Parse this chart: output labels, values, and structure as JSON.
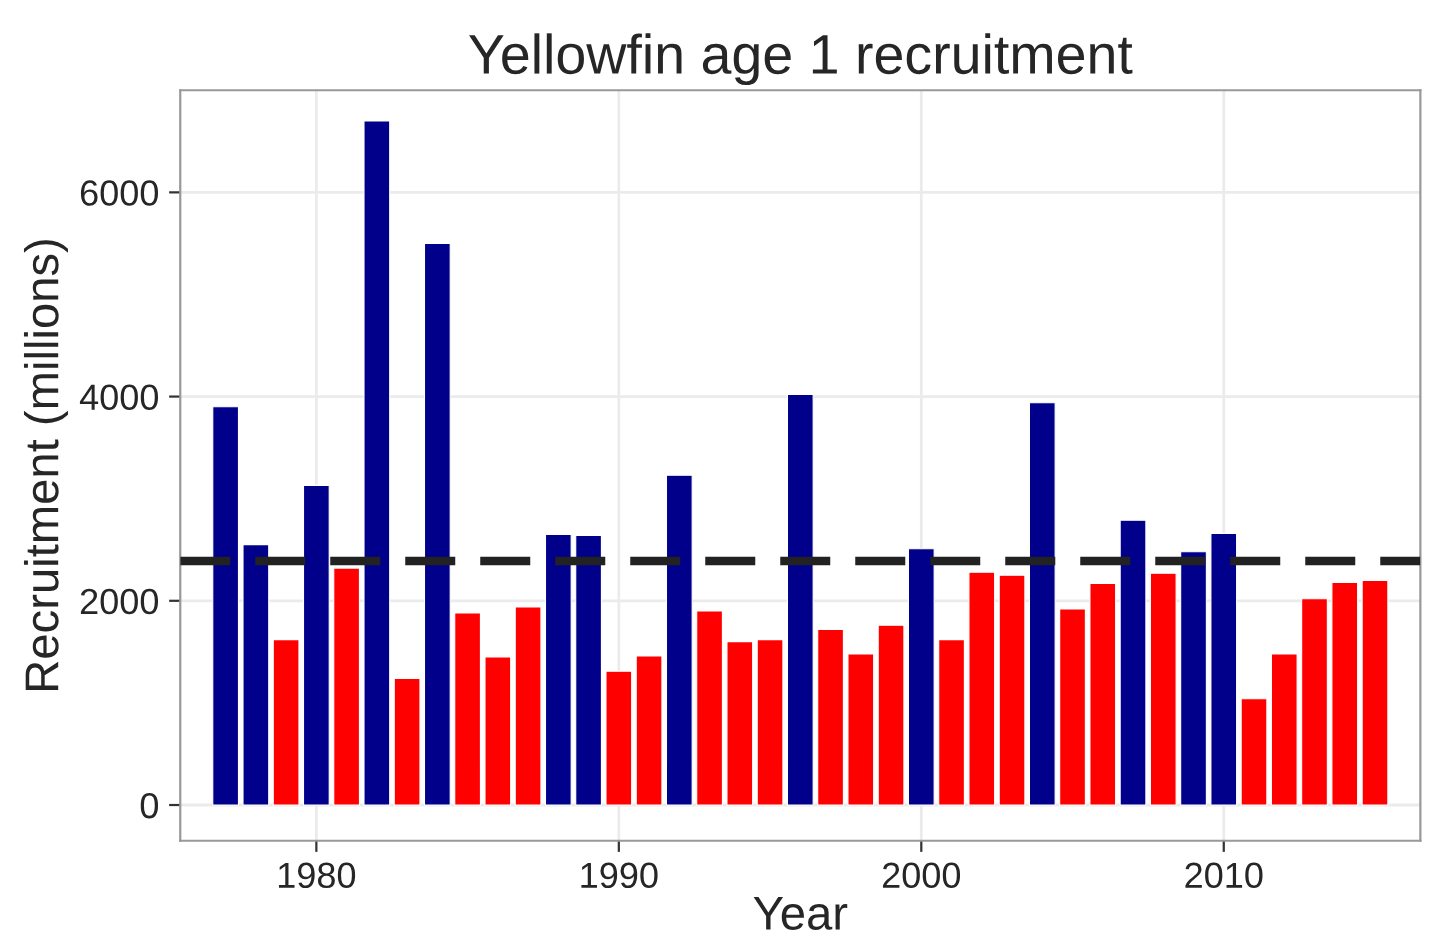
{
  "chart_data": {
    "type": "bar",
    "title": "Yellowfin age 1 recruitment",
    "xlabel": "Year",
    "ylabel": "Recruitment (millions)",
    "x": [
      1977,
      1978,
      1979,
      1980,
      1981,
      1982,
      1983,
      1984,
      1985,
      1986,
      1987,
      1988,
      1989,
      1990,
      1991,
      1992,
      1993,
      1994,
      1995,
      1996,
      1997,
      1998,
      1999,
      2000,
      2001,
      2002,
      2003,
      2004,
      2005,
      2006,
      2007,
      2008,
      2009,
      2010,
      2011,
      2012,
      2013,
      2014,
      2015
    ],
    "values": [
      3900,
      2550,
      1620,
      3130,
      2320,
      6700,
      1240,
      5500,
      1880,
      1450,
      1940,
      2650,
      2640,
      1310,
      1460,
      3230,
      1900,
      1600,
      1620,
      4020,
      1720,
      1480,
      1760,
      2510,
      1620,
      2280,
      2250,
      3940,
      1920,
      2170,
      2790,
      2270,
      2480,
      2660,
      1040,
      1480,
      2020,
      2180,
      2200
    ],
    "colors": [
      "#00008b",
      "#00008b",
      "#ff0000",
      "#00008b",
      "#ff0000",
      "#00008b",
      "#ff0000",
      "#00008b",
      "#ff0000",
      "#ff0000",
      "#ff0000",
      "#00008b",
      "#00008b",
      "#ff0000",
      "#ff0000",
      "#00008b",
      "#ff0000",
      "#ff0000",
      "#ff0000",
      "#00008b",
      "#ff0000",
      "#ff0000",
      "#ff0000",
      "#00008b",
      "#ff0000",
      "#ff0000",
      "#ff0000",
      "#00008b",
      "#ff0000",
      "#ff0000",
      "#00008b",
      "#ff0000",
      "#00008b",
      "#00008b",
      "#ff0000",
      "#ff0000",
      "#ff0000",
      "#ff0000",
      "#ff0000"
    ],
    "xlim": [
      1975.5,
      2016.5
    ],
    "xticks": [
      1980,
      1990,
      2000,
      2010
    ],
    "ylim": [
      -350,
      7000
    ],
    "yticks": [
      0,
      2000,
      4000,
      6000
    ],
    "ref_lines": [
      {
        "axis": "y",
        "value": 2390,
        "color": "#222222",
        "line_style": "dashed"
      }
    ],
    "grid": true
  }
}
